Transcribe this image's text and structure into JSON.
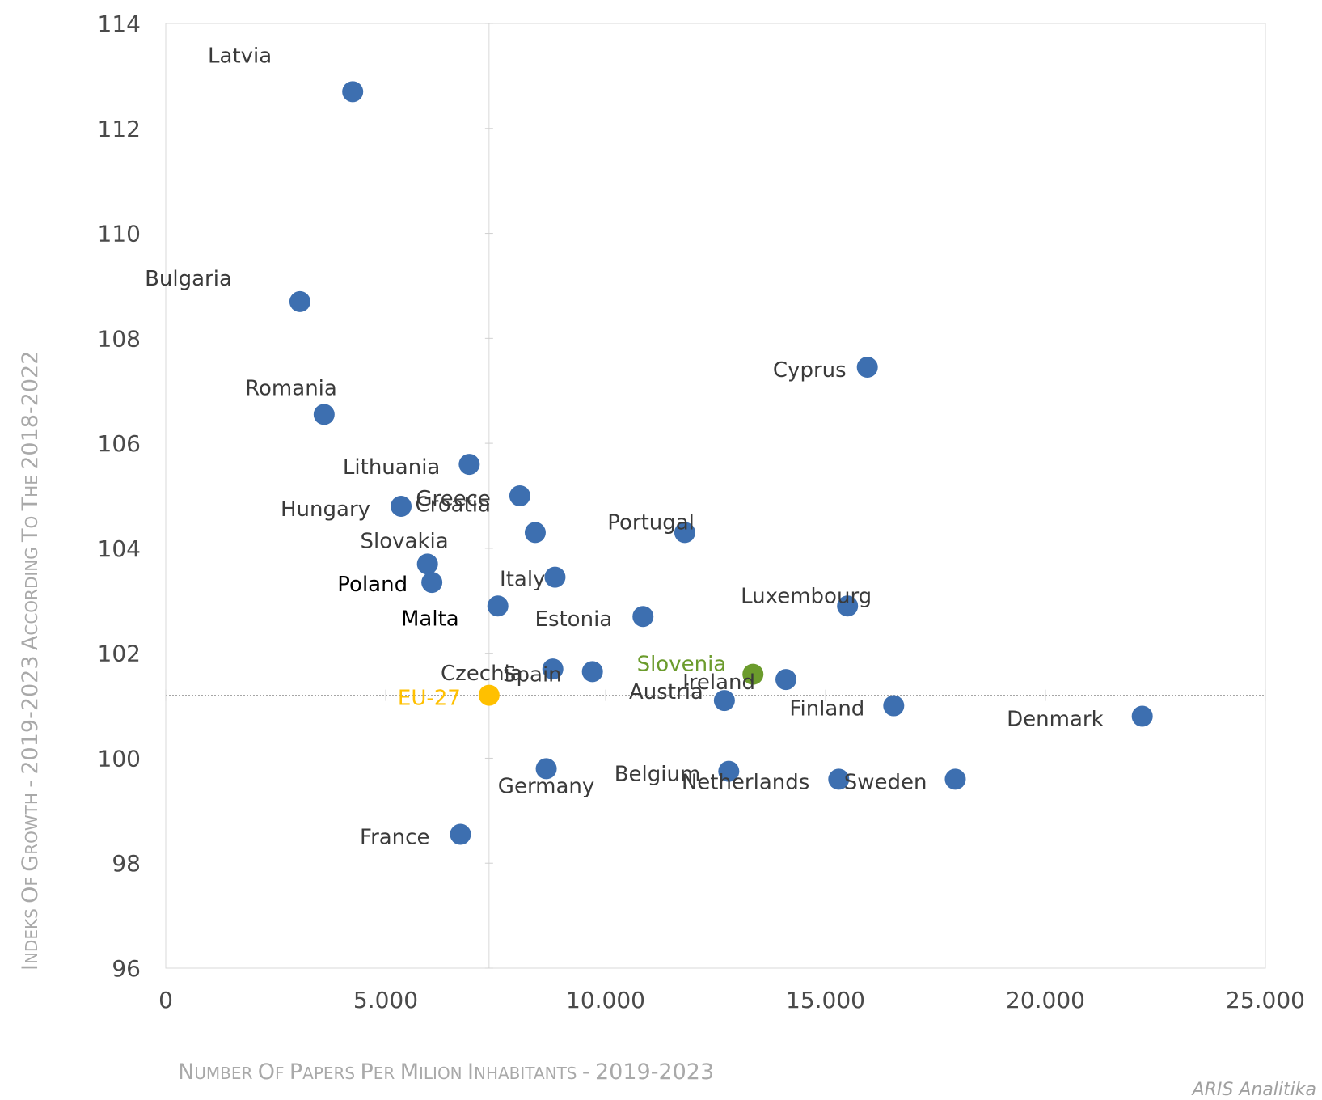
{
  "chart_data": {
    "type": "scatter",
    "xlabel": "Number of papers per milion inhabitants - 2019-2023",
    "ylabel": "Indeks of growth - 2019-2023 according to the 2018-2022",
    "xlim": [
      0,
      25000
    ],
    "ylim": [
      96,
      114
    ],
    "x_ticks": [
      "0",
      "5.000",
      "10.000",
      "15.000",
      "20.000",
      "25.000"
    ],
    "y_ticks": [
      "96",
      "98",
      "100",
      "102",
      "104",
      "106",
      "108",
      "110",
      "112",
      "114"
    ],
    "reference_lines": {
      "x": 7350,
      "y": 101.2
    },
    "grid": false,
    "legend": "none",
    "colors": {
      "default": "#3d6fb0",
      "Slovenia": "#6b9b2c",
      "EU-27": "#ffc000"
    },
    "points": [
      {
        "label": "Latvia",
        "x": 4250,
        "y": 112.7
      },
      {
        "label": "Bulgaria",
        "x": 3050,
        "y": 108.7
      },
      {
        "label": "Romania",
        "x": 3600,
        "y": 106.55
      },
      {
        "label": "Cyprus",
        "x": 15950,
        "y": 107.45
      },
      {
        "label": "Lithuania",
        "x": 6900,
        "y": 105.6
      },
      {
        "label": "Greece",
        "x": 8050,
        "y": 105.0
      },
      {
        "label": "Hungary",
        "x": 5350,
        "y": 104.8
      },
      {
        "label": "Croatia",
        "x": 8400,
        "y": 104.3
      },
      {
        "label": "Portugal",
        "x": 11800,
        "y": 104.3
      },
      {
        "label": "Slovakia",
        "x": 5950,
        "y": 103.7
      },
      {
        "label": "Poland",
        "x": 6050,
        "y": 103.35
      },
      {
        "label": "Italy",
        "x": 8850,
        "y": 103.45
      },
      {
        "label": "Malta",
        "x": 7550,
        "y": 102.9
      },
      {
        "label": "Estonia",
        "x": 10850,
        "y": 102.7
      },
      {
        "label": "Luxembourg",
        "x": 15500,
        "y": 102.9
      },
      {
        "label": "Czechia",
        "x": 8800,
        "y": 101.7
      },
      {
        "label": "Spain",
        "x": 9700,
        "y": 101.65
      },
      {
        "label": "Slovenia",
        "x": 13350,
        "y": 101.6
      },
      {
        "label": "Ireland",
        "x": 14100,
        "y": 101.5
      },
      {
        "label": "Austria",
        "x": 12700,
        "y": 101.1
      },
      {
        "label": "EU-27",
        "x": 7350,
        "y": 101.2
      },
      {
        "label": "Finland",
        "x": 16550,
        "y": 101.0
      },
      {
        "label": "Denmark",
        "x": 22200,
        "y": 100.8
      },
      {
        "label": "Germany",
        "x": 8650,
        "y": 99.8
      },
      {
        "label": "Belgium",
        "x": 12800,
        "y": 99.75
      },
      {
        "label": "Netherlands",
        "x": 15300,
        "y": 99.6
      },
      {
        "label": "Sweden",
        "x": 17950,
        "y": 99.6
      },
      {
        "label": "France",
        "x": 6700,
        "y": 98.55
      }
    ]
  },
  "credit": "ARIS Analitika"
}
